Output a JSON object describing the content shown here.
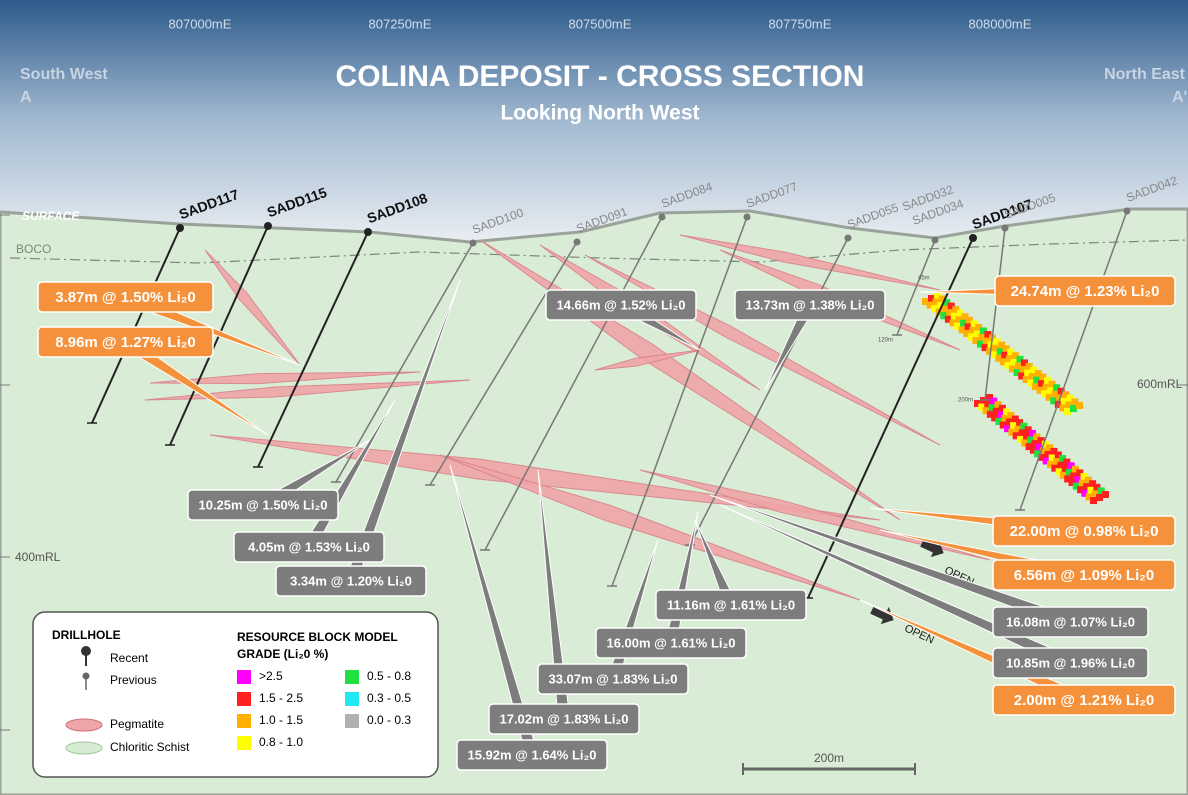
{
  "header": {
    "title": "COLINA DEPOSIT - CROSS SECTION",
    "subtitle": "Looking North West"
  },
  "corners": {
    "left": "South West",
    "left_sub": "A",
    "right": "North East",
    "right_sub": "A'"
  },
  "eastings": [
    "807000mE",
    "807250mE",
    "807500mE",
    "807750mE",
    "808000mE"
  ],
  "elevations": [
    "600mRL",
    "400mRL"
  ],
  "surface": "SURFACE",
  "boco": "BOCO",
  "drillholes": [
    {
      "name": "SADD117"
    },
    {
      "name": "SADD115"
    },
    {
      "name": "SADD108"
    },
    {
      "name": "SADD100"
    },
    {
      "name": "SADD091"
    },
    {
      "name": "SADD084"
    },
    {
      "name": "SADD077"
    },
    {
      "name": "SADD055"
    },
    {
      "name": "SADD032"
    },
    {
      "name": "SADD034"
    },
    {
      "name": "SADD107"
    },
    {
      "name": "SADD005"
    },
    {
      "name": "SADD042"
    }
  ],
  "intercepts": [
    {
      "label": "3.87m @ 1.50% Li₂0"
    },
    {
      "label": "8.96m @ 1.27% Li₂0"
    },
    {
      "label": "24.74m @ 1.23% Li₂0"
    },
    {
      "label": "22.00m @ 0.98% Li₂0"
    },
    {
      "label": "6.56m @ 1.09% Li₂0"
    },
    {
      "label": "2.00m @ 1.21% Li₂0"
    },
    {
      "label": "14.66m @ 1.52% Li₂0"
    },
    {
      "label": "13.73m @ 1.38% Li₂0"
    },
    {
      "label": "10.25m @ 1.50% Li₂0"
    },
    {
      "label": "4.05m @ 1.53% Li₂0"
    },
    {
      "label": "3.34m @ 1.20% Li₂0"
    },
    {
      "label": "15.92m @ 1.64% Li₂0"
    },
    {
      "label": "17.02m @ 1.83% Li₂0"
    },
    {
      "label": "33.07m @ 1.83% Li₂0"
    },
    {
      "label": "16.00m @ 1.61% Li₂0"
    },
    {
      "label": "11.16m @ 1.61% Li₂0"
    },
    {
      "label": "16.08m @ 1.07% Li₂0"
    },
    {
      "label": "10.85m @ 1.96% Li₂0"
    }
  ],
  "open": [
    "OPEN",
    "OPEN"
  ],
  "depth_marks": [
    "45m",
    "120m",
    "200m"
  ],
  "legend": {
    "drillhole_title": "DRILLHOLE",
    "recent": "Recent",
    "previous": "Previous",
    "pegmatite": "Pegmatite",
    "schist": "Chloritic Schist",
    "grade_title": [
      "RESOURCE BLOCK MODEL",
      "GRADE (Li₂0 %)"
    ],
    "grades": [
      {
        "label": ">2.5",
        "color": "#ff00ff"
      },
      {
        "label": "1.5 - 2.5",
        "color": "#ff2020"
      },
      {
        "label": "1.0 - 1.5",
        "color": "#ffb000"
      },
      {
        "label": "0.8 - 1.0",
        "color": "#ffff00"
      },
      {
        "label": "0.5 - 0.8",
        "color": "#20e040"
      },
      {
        "label": "0.3 - 0.5",
        "color": "#20e8f0"
      },
      {
        "label": "0.0 - 0.3",
        "color": "#b0b0b0"
      }
    ]
  },
  "scale": "200m"
}
